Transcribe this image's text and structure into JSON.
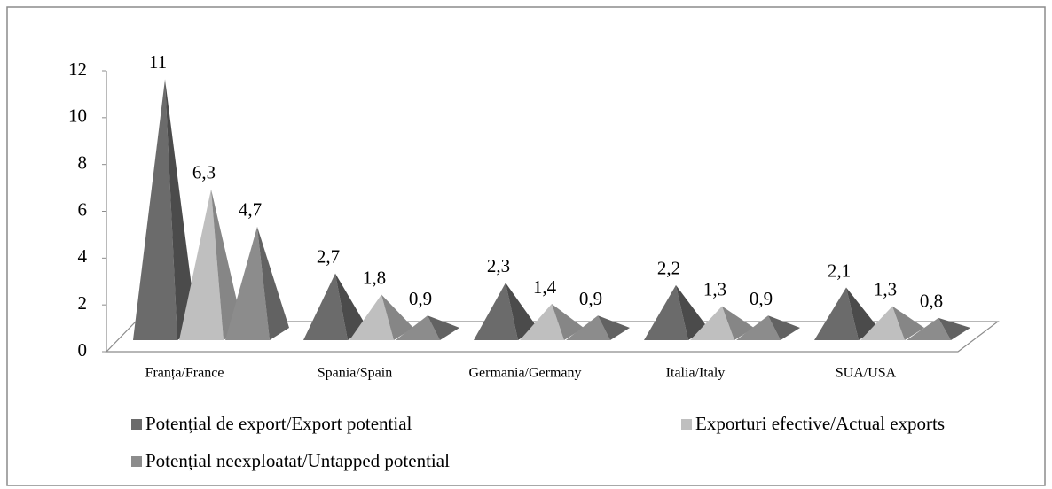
{
  "chart_data": {
    "type": "pyramid3d",
    "categories": [
      "Franța/France",
      "Spania/Spain",
      "Germania/Germany",
      "Italia/Italy",
      "SUA/USA"
    ],
    "series": [
      {
        "name": "Potențial de export/Export potential",
        "color": "#6b6b6b",
        "values": [
          11,
          2.7,
          2.3,
          2.2,
          2.1
        ],
        "value_labels": [
          "11",
          "2,7",
          "2,3",
          "2,2",
          "2,1"
        ]
      },
      {
        "name": "Exporturi efective/Actual exports",
        "color": "#bfbfbf",
        "values": [
          6.3,
          1.8,
          1.4,
          1.3,
          1.3
        ],
        "value_labels": [
          "6,3",
          "1,8",
          "1,4",
          "1,3",
          "1,3"
        ]
      },
      {
        "name": "Potențial neexploatat/Untapped potential",
        "color": "#8c8c8c",
        "values": [
          4.7,
          0.9,
          0.9,
          0.9,
          0.8
        ],
        "value_labels": [
          "4,7",
          "0,9",
          "0,9",
          "0,9",
          "0,8"
        ]
      }
    ],
    "ylim": [
      0,
      12
    ],
    "yticks": [
      0,
      2,
      4,
      6,
      8,
      10,
      12
    ],
    "legend": "bottom"
  }
}
